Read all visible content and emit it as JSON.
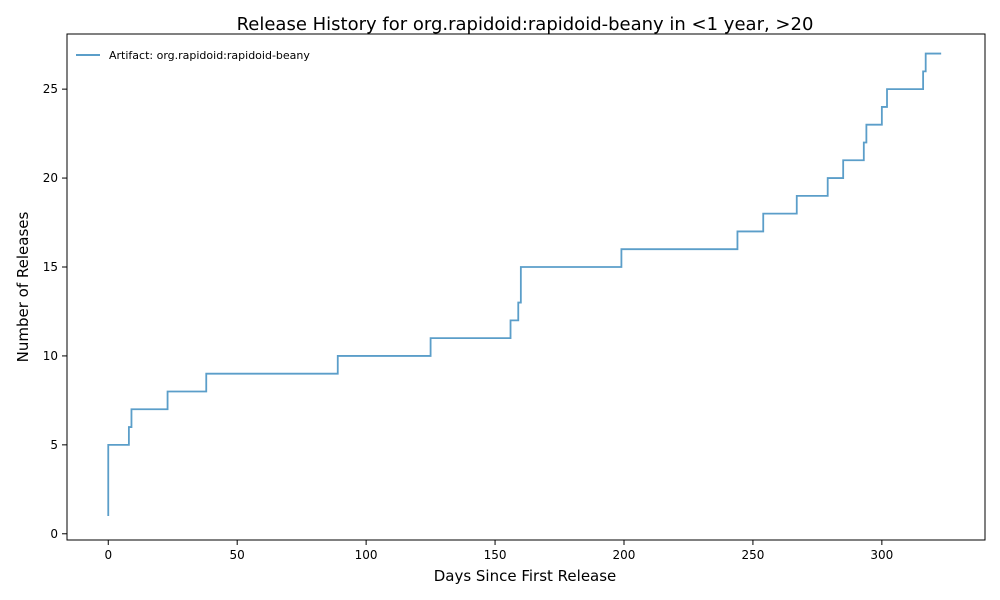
{
  "chart_data": {
    "type": "line",
    "title": "Release History for org.rapidoid:rapidoid-beany in <1 year, >20",
    "xlabel": "Days Since First Release",
    "ylabel": "Number of Releases",
    "xlim": [
      -16,
      340
    ],
    "ylim": [
      -0.35,
      28.1
    ],
    "xticks": [
      0,
      50,
      100,
      150,
      200,
      250,
      300
    ],
    "yticks": [
      0,
      5,
      10,
      15,
      20,
      25
    ],
    "grid": false,
    "legend_position": "top-left",
    "step": true,
    "series": [
      {
        "name": "Artifact: org.rapidoid:rapidoid-beany",
        "color": "#5b9ec9",
        "x": [
          0,
          0,
          0,
          0,
          0,
          8,
          9,
          23,
          38,
          89,
          125,
          156,
          159,
          160,
          160,
          199,
          244,
          254,
          267,
          279,
          285,
          293,
          294,
          300,
          301,
          302,
          316,
          317,
          323
        ],
        "y": [
          1,
          2,
          3,
          4,
          5,
          6,
          7,
          8,
          9,
          10,
          11,
          12,
          13,
          14,
          15,
          16,
          17,
          18,
          19,
          20,
          21,
          22,
          23,
          24,
          24,
          25,
          26,
          27,
          27
        ]
      }
    ]
  }
}
